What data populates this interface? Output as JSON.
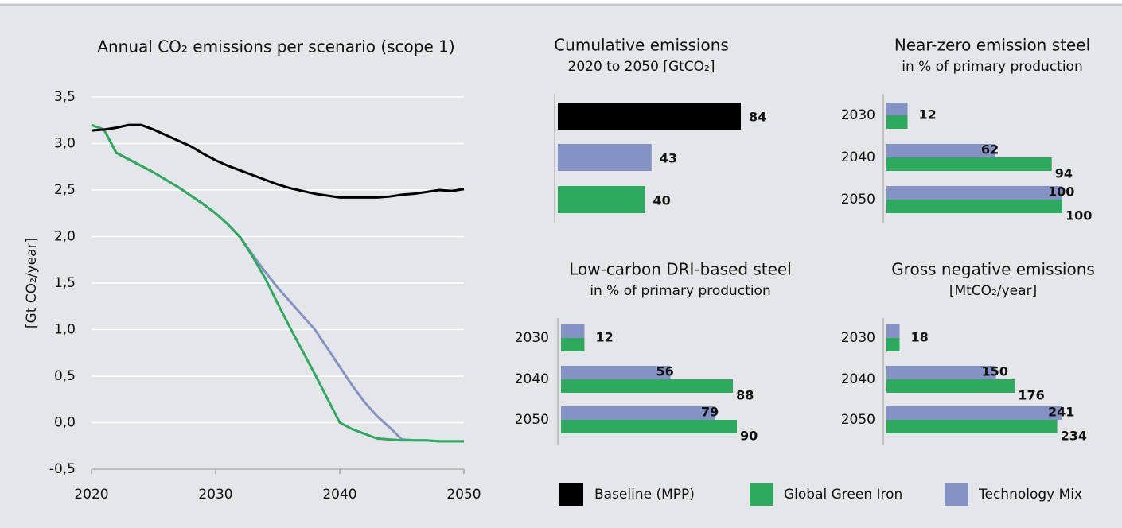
{
  "chart_data": [
    {
      "type": "line",
      "title": "Annual CO₂ emissions per scenario (scope 1)",
      "ylabel": "[Gt CO₂/year]",
      "x": [
        2020,
        2021,
        2022,
        2023,
        2024,
        2025,
        2026,
        2027,
        2028,
        2029,
        2030,
        2031,
        2032,
        2033,
        2034,
        2035,
        2036,
        2037,
        2038,
        2039,
        2040,
        2041,
        2042,
        2043,
        2044,
        2045,
        2046,
        2047,
        2048,
        2049,
        2050
      ],
      "xlim": [
        2020,
        2050
      ],
      "xticks": [
        2020,
        2030,
        2040,
        2050
      ],
      "ylim": [
        -0.5,
        3.5
      ],
      "yticks": [
        {
          "value": -0.5,
          "label": "-0,5"
        },
        {
          "value": 0,
          "label": "0,0"
        },
        {
          "value": 0.5,
          "label": "0,5"
        },
        {
          "value": 1,
          "label": "1,0"
        },
        {
          "value": 1.5,
          "label": "1,5"
        },
        {
          "value": 2,
          "label": "2,0"
        },
        {
          "value": 2.5,
          "label": "2,5"
        },
        {
          "value": 3,
          "label": "3,0"
        },
        {
          "value": 3.5,
          "label": "3,5"
        }
      ],
      "grid": true,
      "series": [
        {
          "name": "Baseline (MPP)",
          "color": "#000000",
          "values": [
            3.14,
            3.15,
            3.17,
            3.2,
            3.2,
            3.15,
            3.09,
            3.03,
            2.97,
            2.89,
            2.82,
            2.76,
            2.71,
            2.66,
            2.61,
            2.56,
            2.52,
            2.49,
            2.46,
            2.44,
            2.42,
            2.42,
            2.42,
            2.42,
            2.43,
            2.45,
            2.46,
            2.48,
            2.5,
            2.49,
            2.51
          ]
        },
        {
          "name": "Global Green Iron",
          "color": "#2eaa5f",
          "values": [
            3.2,
            3.15,
            2.9,
            2.83,
            2.76,
            2.69,
            2.61,
            2.53,
            2.44,
            2.35,
            2.25,
            2.13,
            1.99,
            1.78,
            1.55,
            1.28,
            1.02,
            0.77,
            0.52,
            0.26,
            0.0,
            -0.07,
            -0.12,
            -0.17,
            -0.18,
            -0.19,
            -0.19,
            -0.19,
            -0.2,
            -0.2,
            -0.2
          ]
        },
        {
          "name": "Technology Mix",
          "color": "#8493c4",
          "values": [
            3.2,
            3.15,
            2.9,
            2.83,
            2.76,
            2.69,
            2.61,
            2.53,
            2.44,
            2.35,
            2.25,
            2.13,
            1.99,
            1.8,
            1.62,
            1.45,
            1.3,
            1.15,
            1.0,
            0.8,
            0.6,
            0.4,
            0.22,
            0.07,
            -0.05,
            -0.18,
            -0.19,
            -0.19,
            -0.2,
            -0.2,
            -0.2
          ]
        }
      ]
    },
    {
      "type": "hbar",
      "title": "Cumulative emissions",
      "subtitle": "2020 to 2050 [GtCO₂]",
      "values": [
        84,
        43,
        40
      ],
      "colors": [
        "#000000",
        "#8493c4",
        "#2eaa5f"
      ]
    },
    {
      "type": "grouped-hbar",
      "title": "Near-zero emission steel",
      "subtitle": "in % of primary production",
      "categories": [
        "2030",
        "2040",
        "2050"
      ],
      "series": [
        {
          "color": "#8493c4",
          "values": [
            12,
            62,
            100
          ]
        },
        {
          "color": "#2eaa5f",
          "values": [
            12,
            94,
            100
          ]
        }
      ]
    },
    {
      "type": "grouped-hbar",
      "title": "Low-carbon DRI-based steel",
      "subtitle": "in % of primary production",
      "categories": [
        "2030",
        "2040",
        "2050"
      ],
      "series": [
        {
          "color": "#8493c4",
          "values": [
            12,
            56,
            79
          ]
        },
        {
          "color": "#2eaa5f",
          "values": [
            12,
            88,
            90
          ]
        }
      ]
    },
    {
      "type": "grouped-hbar",
      "title": "Gross negative emissions",
      "subtitle": "[MtCO₂/year]",
      "categories": [
        "2030",
        "2040",
        "2050"
      ],
      "series": [
        {
          "color": "#8493c4",
          "values": [
            18,
            150,
            241
          ]
        },
        {
          "color": "#2eaa5f",
          "values": [
            18,
            176,
            234
          ]
        }
      ]
    }
  ]
}
